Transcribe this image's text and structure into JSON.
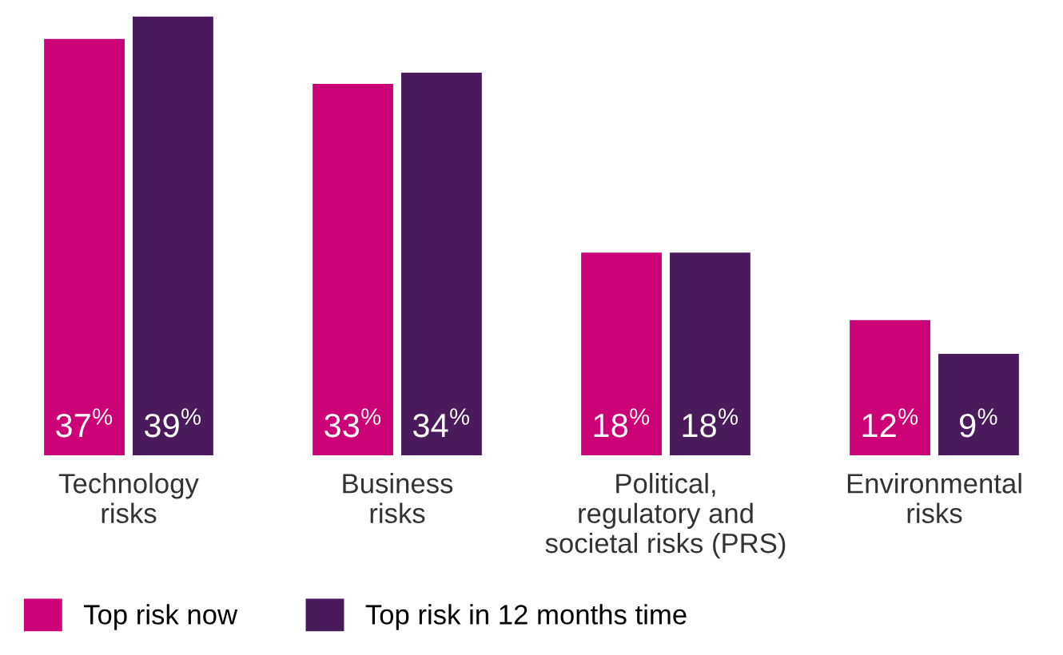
{
  "chart_data": {
    "type": "bar",
    "categories": [
      "Technology\nrisks",
      "Business\nrisks",
      "Political,\nregulatory and\nsocietal risks (PRS)",
      "Environmental\nrisks"
    ],
    "series": [
      {
        "name": "Top risk now",
        "color": "#cc0077",
        "values": [
          37,
          33,
          18,
          12
        ],
        "value_labels": [
          "37$^{%}$",
          "33$^{%}$",
          "18$^{%}$",
          "12$^{%}$"
        ]
      },
      {
        "name": "Top risk in 12 months time",
        "color": "#4a1a5c",
        "values": [
          39,
          34,
          18,
          9
        ],
        "value_labels": [
          "39$^{%}$",
          "34$^{%}$",
          "18$^{%}$",
          "9$^{%}$"
        ]
      }
    ],
    "legend": "bottom left",
    "grid": false
  }
}
